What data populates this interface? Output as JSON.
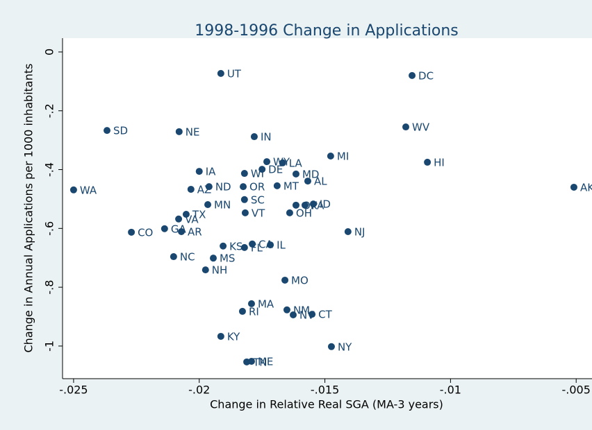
{
  "chart_data": {
    "type": "scatter",
    "title": "1998-1996 Change in Applications",
    "x_label": "Change in Relative Real SGA (MA-3 years)",
    "y_label": "Change in Annual Applications per 1000 inhabitants",
    "color": "#1a476f",
    "xlim": [
      -0.02544,
      -0.00437
    ],
    "ylim": [
      -1.111,
      0.047
    ],
    "xticks": [
      {
        "value": -0.025,
        "label": "-.025"
      },
      {
        "value": -0.02,
        "label": "-.02"
      },
      {
        "value": -0.015,
        "label": "-.015"
      },
      {
        "value": -0.01,
        "label": "-.01"
      },
      {
        "value": -0.005,
        "label": "-.005"
      }
    ],
    "yticks": [
      0,
      {
        "value": -0.2,
        "label": "-.2"
      },
      {
        "value": -0.4,
        "label": "-.4"
      },
      {
        "value": -0.6,
        "label": "-.6"
      },
      {
        "value": -0.8,
        "label": "-.8"
      },
      {
        "value": -1,
        "label": "-1"
      }
    ],
    "labels": [
      "UT",
      "DC",
      "SD",
      "NE",
      "IN",
      "WV",
      "MI",
      "HI",
      "WY",
      "LA",
      "IA",
      "WI",
      "DE",
      "MD",
      "AL",
      "WA",
      "AZ",
      "ND",
      "OR",
      "MT",
      "AK",
      "SC",
      "MN",
      "OK",
      "PA",
      "ID",
      "TX",
      "VA",
      "VT",
      "OH",
      "GA",
      "CO",
      "AR",
      "NJ",
      "KS",
      "CA",
      "FL",
      "IL",
      "NC",
      "MS",
      "NH",
      "MO",
      "MA",
      "RI",
      "NM",
      "NV",
      "CT",
      "KY",
      "NY",
      "TN",
      "ME"
    ],
    "x": [
      -0.01914,
      -0.01153,
      -0.02367,
      -0.0208,
      -0.01781,
      -0.01178,
      -0.01477,
      -0.01092,
      -0.01731,
      -0.01668,
      -0.02,
      -0.0182,
      -0.0175,
      -0.01615,
      -0.01568,
      -0.025,
      -0.02033,
      -0.01961,
      -0.01825,
      -0.0169,
      -0.00509,
      -0.0182,
      -0.01966,
      -0.01615,
      -0.01579,
      -0.01546,
      -0.02052,
      -0.02082,
      -0.01817,
      -0.0164,
      -0.02138,
      -0.0227,
      -0.02071,
      -0.01408,
      -0.01905,
      -0.01789,
      -0.0182,
      -0.01717,
      -0.02102,
      -0.01944,
      -0.01975,
      -0.01659,
      -0.01792,
      -0.01828,
      -0.01651,
      -0.01626,
      -0.01551,
      -0.01914,
      -0.01474,
      -0.01811,
      -0.01792
    ],
    "values": [
      -0.073,
      -0.08,
      -0.267,
      -0.271,
      -0.288,
      -0.255,
      -0.354,
      -0.375,
      -0.373,
      -0.377,
      -0.406,
      -0.413,
      -0.399,
      -0.415,
      -0.439,
      -0.469,
      -0.467,
      -0.458,
      -0.458,
      -0.455,
      -0.46,
      -0.502,
      -0.519,
      -0.521,
      -0.521,
      -0.517,
      -0.552,
      -0.568,
      -0.547,
      -0.547,
      -0.601,
      -0.613,
      -0.611,
      -0.611,
      -0.66,
      -0.653,
      -0.665,
      -0.656,
      -0.696,
      -0.701,
      -0.741,
      -0.776,
      -0.856,
      -0.882,
      -0.877,
      -0.894,
      -0.892,
      -0.967,
      -1.002,
      -1.054,
      -1.052
    ]
  }
}
